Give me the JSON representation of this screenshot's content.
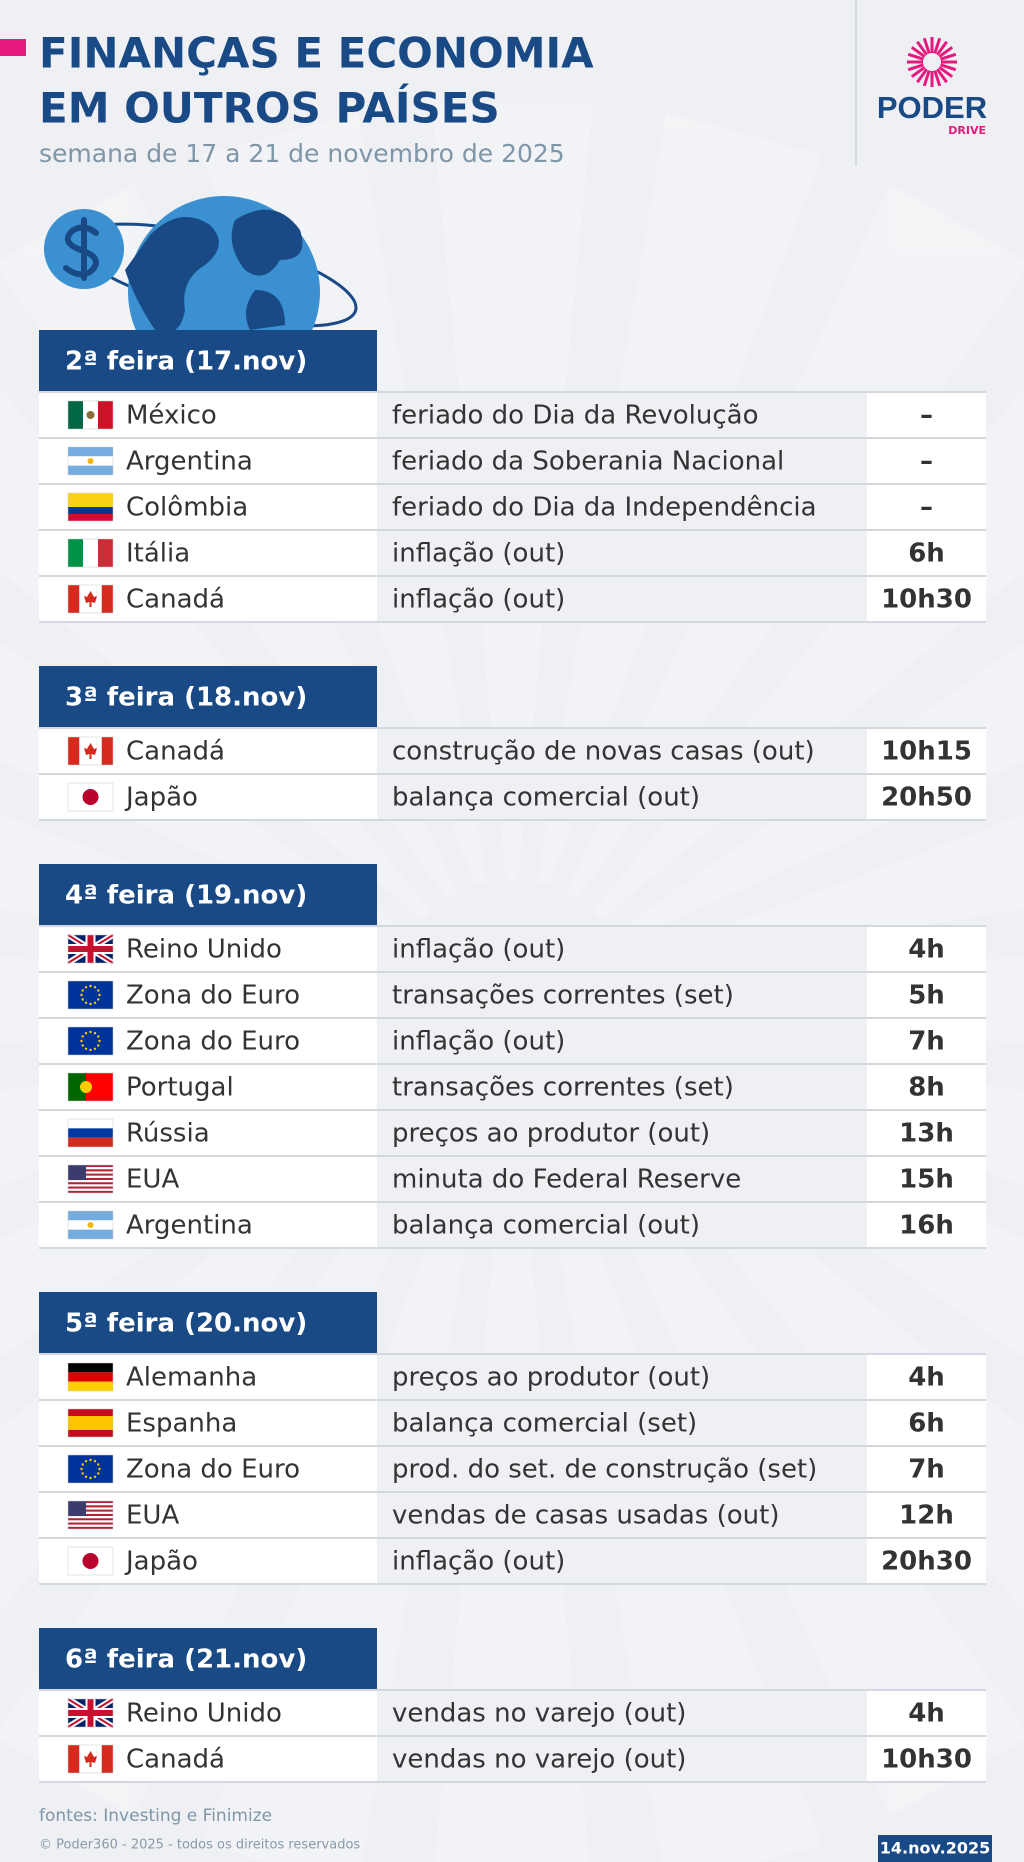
{
  "header": {
    "title_lines": [
      "FINANÇAS E ECONOMIA",
      "EM OUTROS PAÍSES"
    ],
    "subtitle": "semana de 17 a 21 de novembro de 2025",
    "logo": "PODER",
    "logo_sub": "DRIVE"
  },
  "days": [
    {
      "label": "2ª feira (17.nov)",
      "rows": [
        [
          "México",
          "feriado do Dia da Revolução",
          "–"
        ],
        [
          "Argentina",
          "feriado da Soberania Nacional",
          "–"
        ],
        [
          "Colômbia",
          "feriado do Dia da Independência",
          "–"
        ],
        [
          "Itália",
          "inflação (out)",
          "6h"
        ],
        [
          "Canadá",
          "inflação (out)",
          "10h30"
        ]
      ]
    },
    {
      "label": "3ª feira (18.nov)",
      "rows": [
        [
          "Canadá",
          "construção de novas casas (out)",
          "10h15"
        ],
        [
          "Japão",
          "balança comercial (out)",
          "20h50"
        ]
      ]
    },
    {
      "label": "4ª feira (19.nov)",
      "rows": [
        [
          "Reino Unido",
          "inflação (out)",
          "4h"
        ],
        [
          "Zona do Euro",
          "transações correntes (set)",
          "5h"
        ],
        [
          "Zona do Euro",
          "inflação (out)",
          "7h"
        ],
        [
          "Portugal",
          "transações correntes (set)",
          "8h"
        ],
        [
          "Rússia",
          "preços ao produtor (out)",
          "13h"
        ],
        [
          "EUA",
          "minuta do Federal Reserve",
          "15h"
        ],
        [
          "Argentina",
          "balança comercial (out)",
          "16h"
        ]
      ]
    },
    {
      "label": "5ª feira (20.nov)",
      "rows": [
        [
          "Alemanha",
          "preços ao produtor (out)",
          "4h"
        ],
        [
          "Espanha",
          "balança comercial (set)",
          "6h"
        ],
        [
          "Zona do Euro",
          "prod. do set. de construção (set)",
          "7h"
        ],
        [
          "EUA",
          "vendas de casas usadas (out)",
          "12h"
        ],
        [
          "Japão",
          "inflação (out)",
          "20h30"
        ]
      ]
    },
    {
      "label": "6ª feira (21.nov)",
      "rows": [
        [
          "Reino Unido",
          "vendas no varejo (out)",
          "4h"
        ],
        [
          "Canadá",
          "vendas no varejo (out)",
          "10h30"
        ]
      ]
    }
  ],
  "footer": {
    "sources": "fontes: Investing e Finimize",
    "copyright": "© Poder360 - 2025 - todos os direitos reservados",
    "date": "14.nov.2025"
  }
}
